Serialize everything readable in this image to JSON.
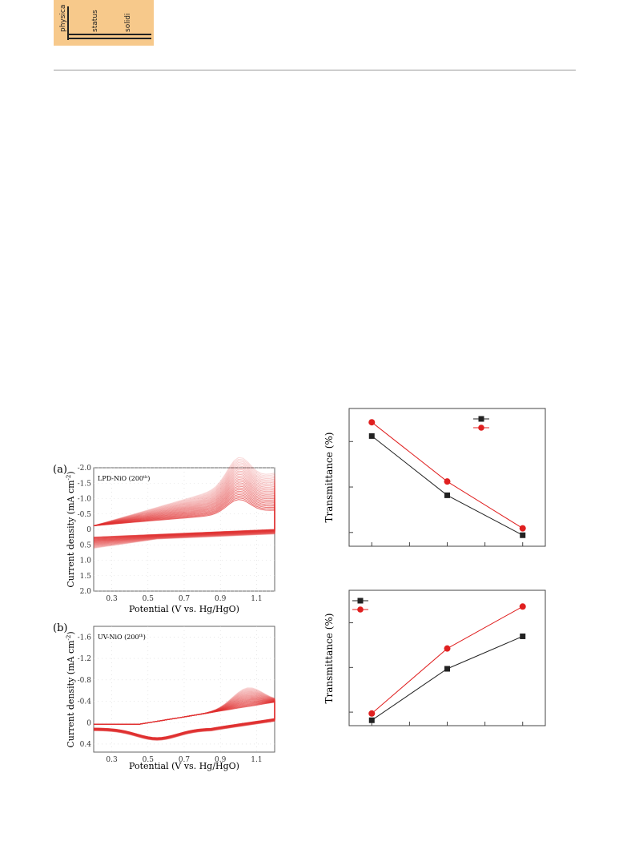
{
  "logo": {
    "words": [
      "physica",
      "status",
      "solidi"
    ],
    "color": "#f7c98b"
  },
  "cv_panels": [
    {
      "panel_label": "(a)",
      "annotation": "LPD-NiO (200",
      "annotation_sup": "th",
      "annotation_close": ")",
      "ylabel": "Current density (mA cm",
      "ylabel_sup": "-2",
      "ylabel_close": ")",
      "xlabel": "Potential (V vs. Hg/HgO)",
      "xticks": [
        "0.3",
        "0.5",
        "0.7",
        "0.9",
        "1.1"
      ],
      "yticks": [
        "-2.0",
        "-1.5",
        "-1.0",
        "-0.5",
        "0",
        "0.5",
        "1.0",
        "1.5",
        "2.0"
      ]
    },
    {
      "panel_label": "(b)",
      "annotation": "UV-NiO (200",
      "annotation_sup": "th",
      "annotation_close": ")",
      "ylabel": "Current density (mA cm",
      "ylabel_sup": "-2",
      "ylabel_close": ")",
      "xlabel": "Potential (V vs. Hg/HgO)",
      "xticks": [
        "0.3",
        "0.5",
        "0.7",
        "0.9",
        "1.1"
      ],
      "yticks": [
        "-1.6",
        "-1.2",
        "-0.8",
        "-0.4",
        "0",
        "0.4"
      ]
    }
  ],
  "chart_data": [
    {
      "type": "line",
      "ylabel": "Transmittance (%)",
      "x": [
        1,
        2,
        3
      ],
      "series": [
        {
          "color": "#222222",
          "marker": "square",
          "values": [
            0.8,
            0.37,
            0.08
          ]
        },
        {
          "color": "#e02020",
          "marker": "circle",
          "values": [
            0.9,
            0.47,
            0.13
          ]
        }
      ],
      "ylim": [
        0,
        1
      ],
      "legend": "top-right"
    },
    {
      "type": "line",
      "ylabel": "Transmittance (%)",
      "x": [
        1,
        2,
        3
      ],
      "series": [
        {
          "color": "#222222",
          "marker": "square",
          "values": [
            0.04,
            0.42,
            0.66
          ]
        },
        {
          "color": "#e02020",
          "marker": "circle",
          "values": [
            0.09,
            0.57,
            0.88
          ]
        }
      ],
      "ylim": [
        0,
        1
      ],
      "legend": "top-left"
    }
  ]
}
